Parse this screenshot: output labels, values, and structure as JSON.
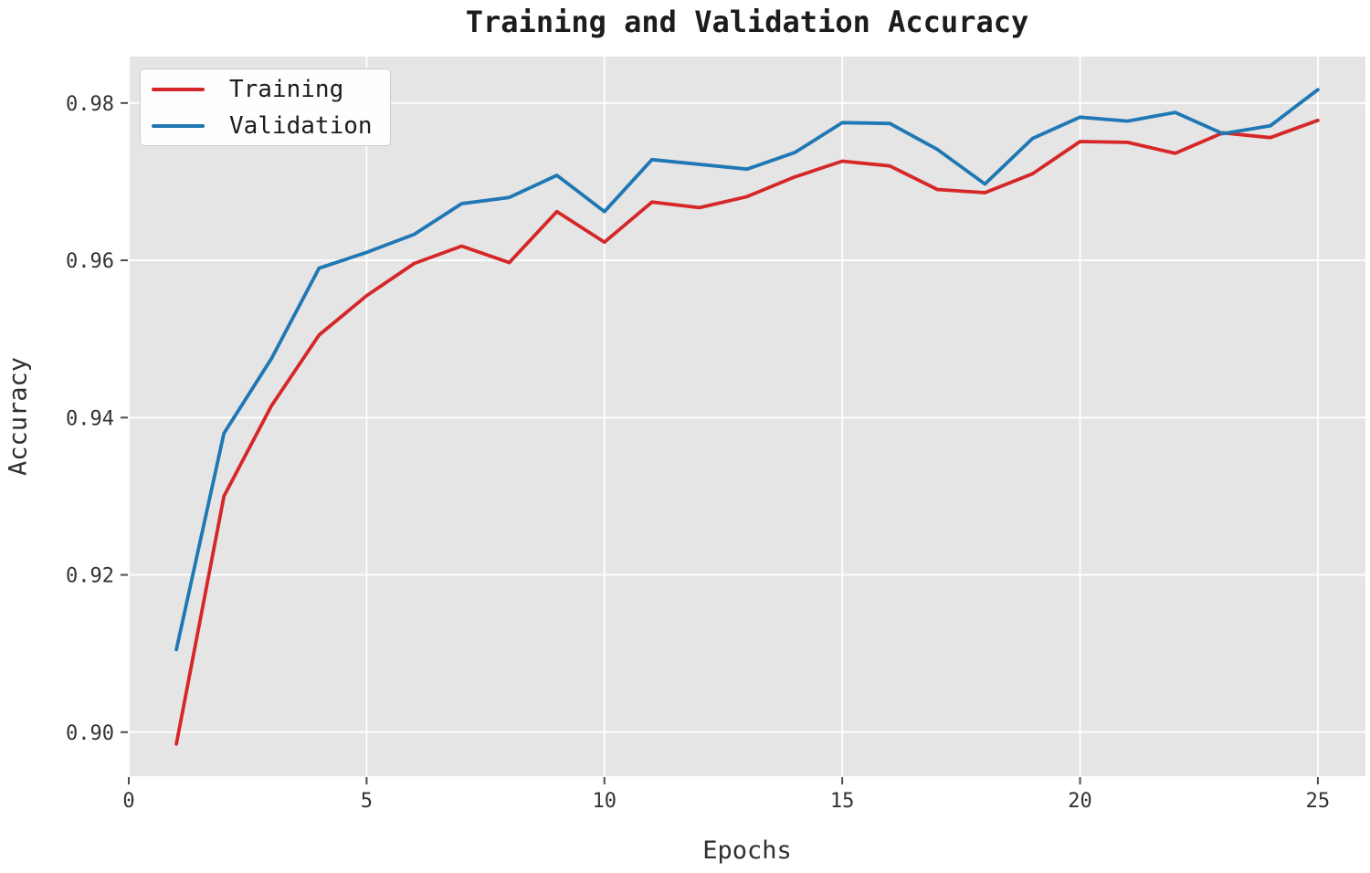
{
  "figure": {
    "title": "Training and Validation Accuracy",
    "xlabel": "Epochs",
    "ylabel": "Accuracy"
  },
  "chart_data": {
    "type": "line",
    "title": "Training and Validation Accuracy",
    "xlabel": "Epochs",
    "ylabel": "Accuracy",
    "x": [
      1,
      2,
      3,
      4,
      5,
      6,
      7,
      8,
      9,
      10,
      11,
      12,
      13,
      14,
      15,
      16,
      17,
      18,
      19,
      20,
      21,
      22,
      23,
      24,
      25
    ],
    "series": [
      {
        "name": "Training",
        "color": "#d62728",
        "values": [
          0.8985,
          0.93,
          0.9415,
          0.9505,
          0.9555,
          0.9596,
          0.9618,
          0.9597,
          0.9662,
          0.9623,
          0.9674,
          0.9667,
          0.9681,
          0.9706,
          0.9726,
          0.972,
          0.969,
          0.9686,
          0.971,
          0.9751,
          0.975,
          0.9736,
          0.9762,
          0.9756,
          0.9778
        ]
      },
      {
        "name": "Validation",
        "color": "#1f77b4",
        "values": [
          0.9105,
          0.938,
          0.9475,
          0.959,
          0.961,
          0.9633,
          0.9672,
          0.968,
          0.9708,
          0.9662,
          0.9728,
          0.9722,
          0.9716,
          0.9737,
          0.9775,
          0.9774,
          0.9741,
          0.9697,
          0.9755,
          0.9782,
          0.9777,
          0.9788,
          0.9761,
          0.9771,
          0.9817
        ]
      }
    ],
    "xlim": [
      0,
      26
    ],
    "ylim": [
      0.8944,
      0.9859
    ],
    "xticks": [
      0,
      5,
      10,
      15,
      20,
      25
    ],
    "yticks": [
      0.9,
      0.92,
      0.94,
      0.96,
      0.98
    ],
    "ytick_format_decimals": 2,
    "grid": true,
    "legend_position": "upper left",
    "plot_bg_color": "#e5e5e5",
    "grid_color": "#ffffff",
    "tick_color": "#4d4d4d",
    "tick_label_color": "#333333"
  }
}
